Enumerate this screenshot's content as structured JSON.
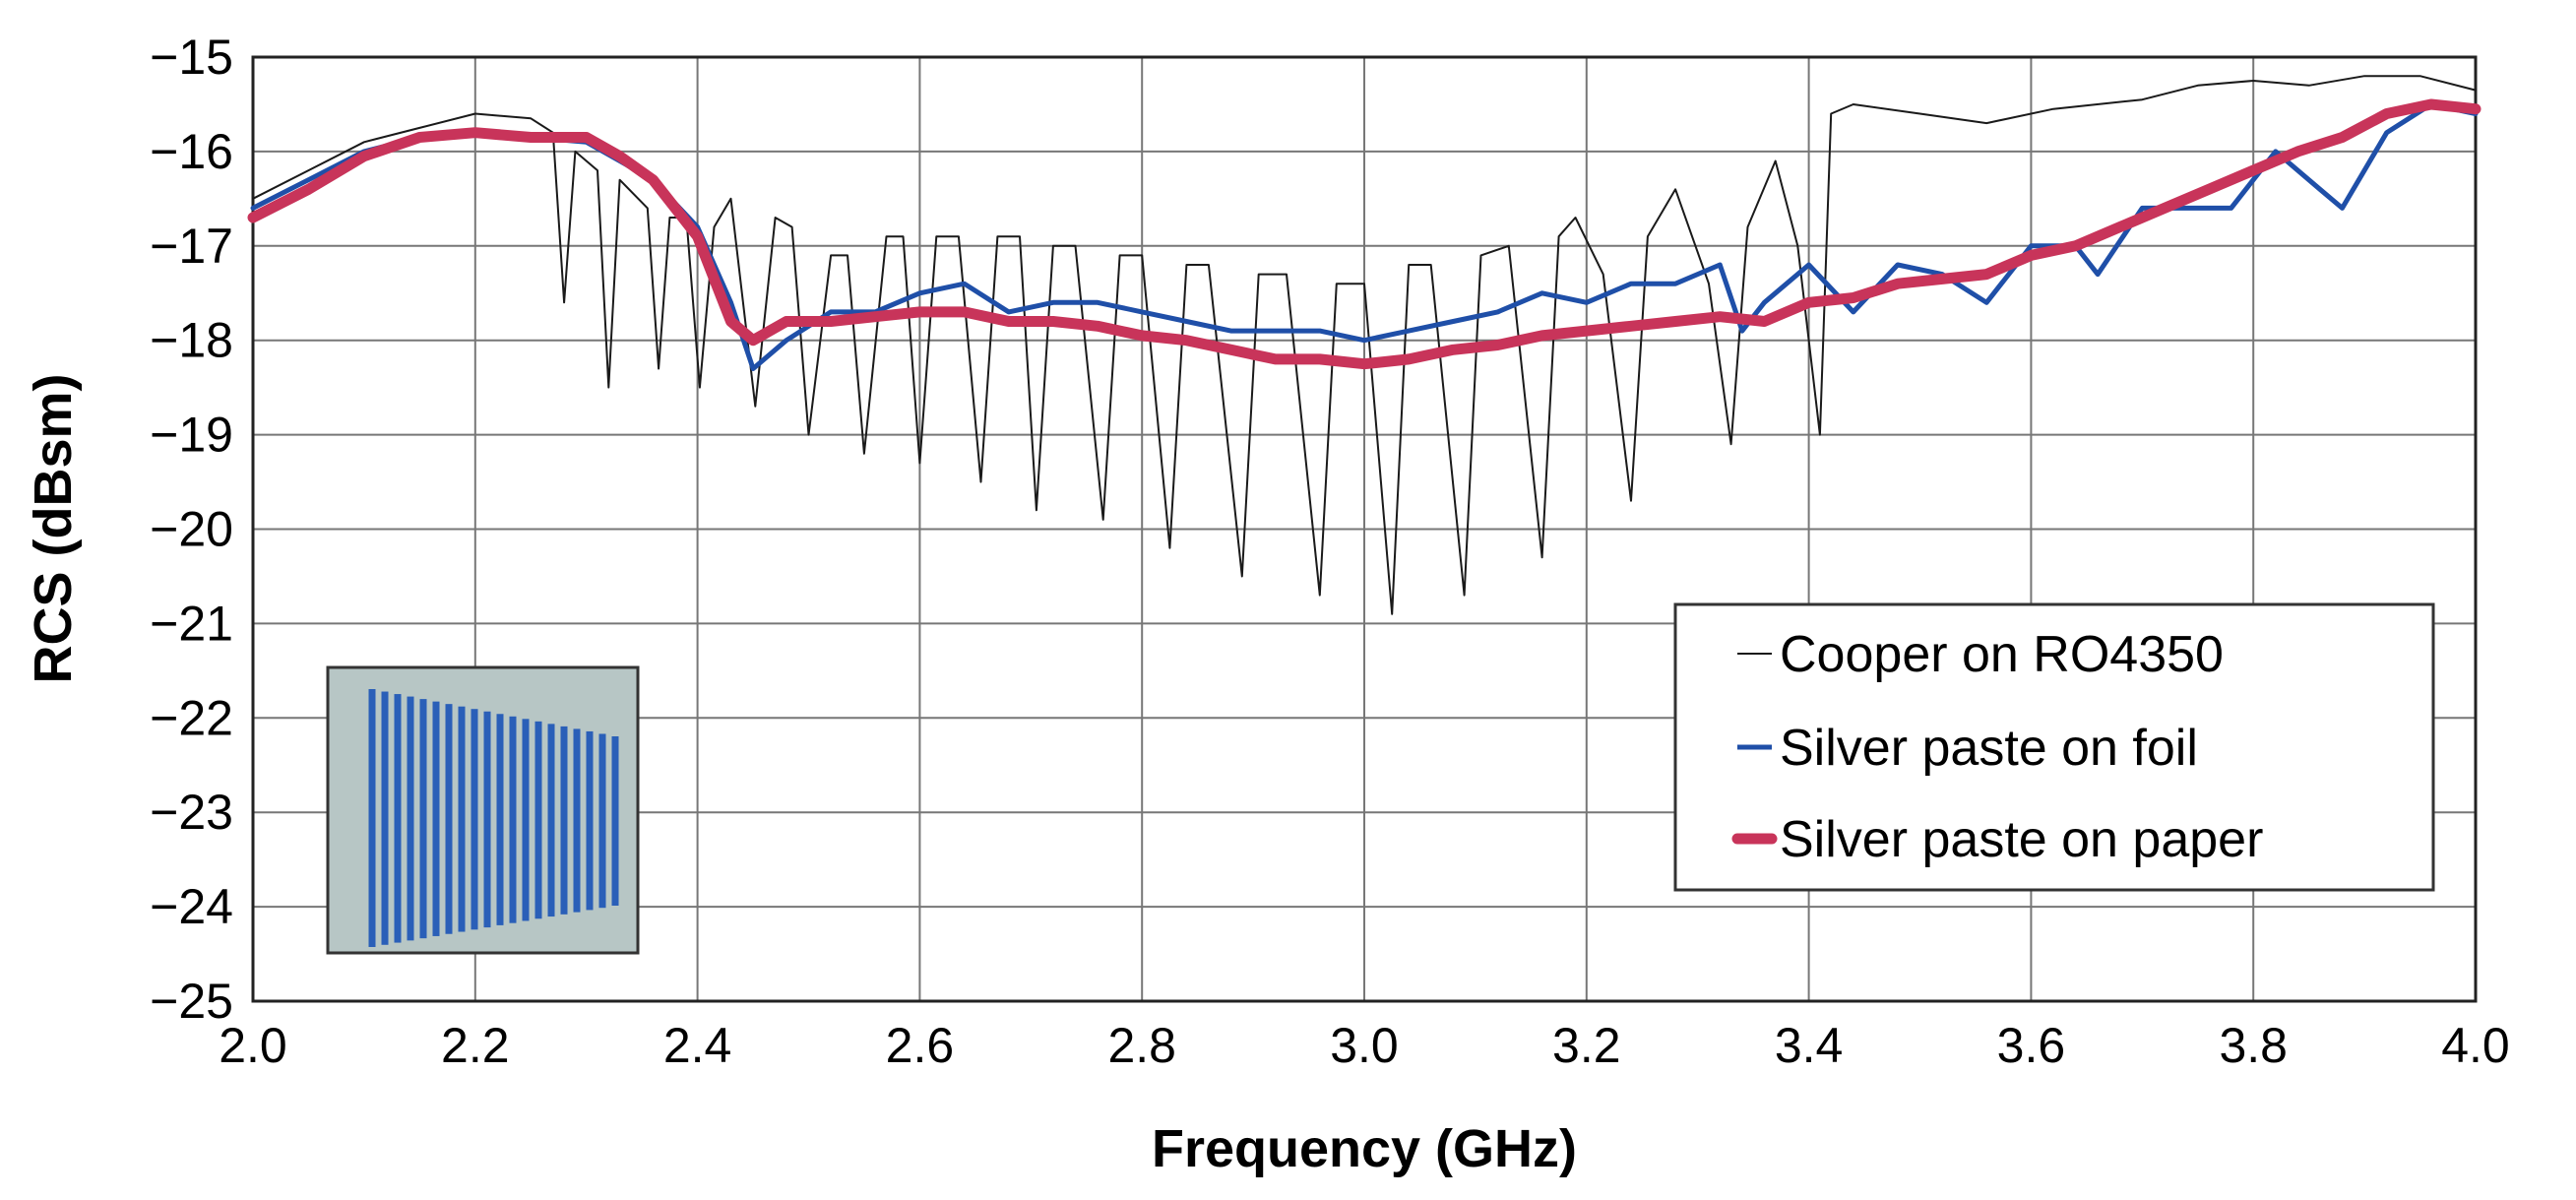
{
  "chart_data": {
    "type": "line",
    "title": "",
    "xlabel": "Frequency (GHz)",
    "ylabel": "RCS (dBsm)",
    "xlim": [
      2.0,
      4.0
    ],
    "ylim": [
      -25,
      -15
    ],
    "grid": true,
    "legend_position": "lower-right",
    "x_ticks": [
      {
        "value": 2.0,
        "label": "2.0"
      },
      {
        "value": 2.2,
        "label": "2.2"
      },
      {
        "value": 2.4,
        "label": "2.4"
      },
      {
        "value": 2.6,
        "label": "2.6"
      },
      {
        "value": 2.8,
        "label": "2.8"
      },
      {
        "value": 3.0,
        "label": "3.0"
      },
      {
        "value": 3.2,
        "label": "3.2"
      },
      {
        "value": 3.4,
        "label": "3.4"
      },
      {
        "value": 3.6,
        "label": "3.6"
      },
      {
        "value": 3.8,
        "label": "3.8"
      },
      {
        "value": 4.0,
        "label": "4.0"
      }
    ],
    "y_ticks": [
      {
        "value": -15,
        "label": "−15"
      },
      {
        "value": -16,
        "label": "−16"
      },
      {
        "value": -17,
        "label": "−17"
      },
      {
        "value": -18,
        "label": "−18"
      },
      {
        "value": -19,
        "label": "−19"
      },
      {
        "value": -20,
        "label": "−20"
      },
      {
        "value": -21,
        "label": "−21"
      },
      {
        "value": -22,
        "label": "−22"
      },
      {
        "value": -23,
        "label": "−23"
      },
      {
        "value": -24,
        "label": "−24"
      },
      {
        "value": -25,
        "label": "−25"
      }
    ],
    "series": [
      {
        "name": "Cooper on RO4350",
        "color": "#1a1a1a",
        "points": [
          [
            2.0,
            -16.5
          ],
          [
            2.05,
            -16.2
          ],
          [
            2.1,
            -15.9
          ],
          [
            2.15,
            -15.75
          ],
          [
            2.2,
            -15.6
          ],
          [
            2.25,
            -15.65
          ],
          [
            2.27,
            -15.8
          ],
          [
            2.28,
            -17.6
          ],
          [
            2.29,
            -16.0
          ],
          [
            2.31,
            -16.2
          ],
          [
            2.32,
            -18.5
          ],
          [
            2.33,
            -16.3
          ],
          [
            2.355,
            -16.6
          ],
          [
            2.365,
            -18.3
          ],
          [
            2.375,
            -16.7
          ],
          [
            2.39,
            -16.7
          ],
          [
            2.402,
            -18.5
          ],
          [
            2.415,
            -16.8
          ],
          [
            2.43,
            -16.5
          ],
          [
            2.452,
            -18.7
          ],
          [
            2.47,
            -16.7
          ],
          [
            2.485,
            -16.8
          ],
          [
            2.5,
            -19.0
          ],
          [
            2.52,
            -17.1
          ],
          [
            2.535,
            -17.1
          ],
          [
            2.55,
            -19.2
          ],
          [
            2.57,
            -16.9
          ],
          [
            2.585,
            -16.9
          ],
          [
            2.6,
            -19.3
          ],
          [
            2.615,
            -16.9
          ],
          [
            2.635,
            -16.9
          ],
          [
            2.655,
            -19.5
          ],
          [
            2.67,
            -16.9
          ],
          [
            2.69,
            -16.9
          ],
          [
            2.705,
            -19.8
          ],
          [
            2.72,
            -17.0
          ],
          [
            2.74,
            -17.0
          ],
          [
            2.765,
            -19.9
          ],
          [
            2.78,
            -17.1
          ],
          [
            2.8,
            -17.1
          ],
          [
            2.825,
            -20.2
          ],
          [
            2.84,
            -17.2
          ],
          [
            2.86,
            -17.2
          ],
          [
            2.89,
            -20.5
          ],
          [
            2.905,
            -17.3
          ],
          [
            2.93,
            -17.3
          ],
          [
            2.96,
            -20.7
          ],
          [
            2.975,
            -17.4
          ],
          [
            3.0,
            -17.4
          ],
          [
            3.025,
            -20.9
          ],
          [
            3.04,
            -17.2
          ],
          [
            3.06,
            -17.2
          ],
          [
            3.09,
            -20.7
          ],
          [
            3.105,
            -17.1
          ],
          [
            3.13,
            -17.0
          ],
          [
            3.16,
            -20.3
          ],
          [
            3.175,
            -16.9
          ],
          [
            3.19,
            -16.7
          ],
          [
            3.215,
            -17.3
          ],
          [
            3.24,
            -19.7
          ],
          [
            3.255,
            -16.9
          ],
          [
            3.28,
            -16.4
          ],
          [
            3.31,
            -17.4
          ],
          [
            3.33,
            -19.1
          ],
          [
            3.345,
            -16.8
          ],
          [
            3.37,
            -16.1
          ],
          [
            3.39,
            -17.0
          ],
          [
            3.41,
            -19.0
          ],
          [
            3.42,
            -15.6
          ],
          [
            3.44,
            -15.5
          ],
          [
            3.5,
            -15.6
          ],
          [
            3.56,
            -15.7
          ],
          [
            3.62,
            -15.55
          ],
          [
            3.7,
            -15.45
          ],
          [
            3.75,
            -15.3
          ],
          [
            3.8,
            -15.25
          ],
          [
            3.85,
            -15.3
          ],
          [
            3.9,
            -15.2
          ],
          [
            3.95,
            -15.2
          ],
          [
            4.0,
            -15.35
          ]
        ]
      },
      {
        "name": "Silver paste on foil",
        "color": "#1f4fa8",
        "points": [
          [
            2.0,
            -16.6
          ],
          [
            2.05,
            -16.3
          ],
          [
            2.1,
            -16.0
          ],
          [
            2.15,
            -15.85
          ],
          [
            2.2,
            -15.8
          ],
          [
            2.25,
            -15.85
          ],
          [
            2.3,
            -15.9
          ],
          [
            2.33,
            -16.1
          ],
          [
            2.36,
            -16.3
          ],
          [
            2.4,
            -16.8
          ],
          [
            2.43,
            -17.6
          ],
          [
            2.45,
            -18.3
          ],
          [
            2.48,
            -18.0
          ],
          [
            2.52,
            -17.7
          ],
          [
            2.56,
            -17.7
          ],
          [
            2.6,
            -17.5
          ],
          [
            2.64,
            -17.4
          ],
          [
            2.68,
            -17.7
          ],
          [
            2.72,
            -17.6
          ],
          [
            2.76,
            -17.6
          ],
          [
            2.8,
            -17.7
          ],
          [
            2.84,
            -17.8
          ],
          [
            2.88,
            -17.9
          ],
          [
            2.92,
            -17.9
          ],
          [
            2.96,
            -17.9
          ],
          [
            3.0,
            -18.0
          ],
          [
            3.04,
            -17.9
          ],
          [
            3.08,
            -17.8
          ],
          [
            3.12,
            -17.7
          ],
          [
            3.16,
            -17.5
          ],
          [
            3.2,
            -17.6
          ],
          [
            3.24,
            -17.4
          ],
          [
            3.28,
            -17.4
          ],
          [
            3.32,
            -17.2
          ],
          [
            3.34,
            -17.9
          ],
          [
            3.36,
            -17.6
          ],
          [
            3.4,
            -17.2
          ],
          [
            3.44,
            -17.7
          ],
          [
            3.48,
            -17.2
          ],
          [
            3.52,
            -17.3
          ],
          [
            3.56,
            -17.6
          ],
          [
            3.6,
            -17.0
          ],
          [
            3.64,
            -17.0
          ],
          [
            3.66,
            -17.3
          ],
          [
            3.7,
            -16.6
          ],
          [
            3.74,
            -16.6
          ],
          [
            3.78,
            -16.6
          ],
          [
            3.82,
            -16.0
          ],
          [
            3.86,
            -16.4
          ],
          [
            3.88,
            -16.6
          ],
          [
            3.92,
            -15.8
          ],
          [
            3.96,
            -15.5
          ],
          [
            4.0,
            -15.6
          ]
        ]
      },
      {
        "name": "Silver paste on paper",
        "color": "#c8345a",
        "points": [
          [
            2.0,
            -16.7
          ],
          [
            2.05,
            -16.4
          ],
          [
            2.1,
            -16.05
          ],
          [
            2.15,
            -15.85
          ],
          [
            2.2,
            -15.8
          ],
          [
            2.25,
            -15.85
          ],
          [
            2.3,
            -15.85
          ],
          [
            2.33,
            -16.05
          ],
          [
            2.36,
            -16.3
          ],
          [
            2.4,
            -16.9
          ],
          [
            2.43,
            -17.8
          ],
          [
            2.45,
            -18.0
          ],
          [
            2.48,
            -17.8
          ],
          [
            2.52,
            -17.8
          ],
          [
            2.56,
            -17.75
          ],
          [
            2.6,
            -17.7
          ],
          [
            2.64,
            -17.7
          ],
          [
            2.68,
            -17.8
          ],
          [
            2.72,
            -17.8
          ],
          [
            2.76,
            -17.85
          ],
          [
            2.8,
            -17.95
          ],
          [
            2.84,
            -18.0
          ],
          [
            2.88,
            -18.1
          ],
          [
            2.92,
            -18.2
          ],
          [
            2.96,
            -18.2
          ],
          [
            3.0,
            -18.25
          ],
          [
            3.04,
            -18.2
          ],
          [
            3.08,
            -18.1
          ],
          [
            3.12,
            -18.05
          ],
          [
            3.16,
            -17.95
          ],
          [
            3.2,
            -17.9
          ],
          [
            3.24,
            -17.85
          ],
          [
            3.28,
            -17.8
          ],
          [
            3.32,
            -17.75
          ],
          [
            3.36,
            -17.8
          ],
          [
            3.4,
            -17.6
          ],
          [
            3.44,
            -17.55
          ],
          [
            3.48,
            -17.4
          ],
          [
            3.52,
            -17.35
          ],
          [
            3.56,
            -17.3
          ],
          [
            3.6,
            -17.1
          ],
          [
            3.64,
            -17.0
          ],
          [
            3.68,
            -16.8
          ],
          [
            3.72,
            -16.6
          ],
          [
            3.76,
            -16.4
          ],
          [
            3.8,
            -16.2
          ],
          [
            3.84,
            -16.0
          ],
          [
            3.88,
            -15.85
          ],
          [
            3.92,
            -15.6
          ],
          [
            3.96,
            -15.5
          ],
          [
            4.0,
            -15.55
          ]
        ]
      }
    ]
  },
  "legend": {
    "items": [
      {
        "label": "Cooper on RO4350",
        "color": "#1a1a1a"
      },
      {
        "label": "Silver paste on foil",
        "color": "#1f4fa8"
      },
      {
        "label": "Silver paste on paper",
        "color": "#c8345a"
      }
    ]
  },
  "inset": {
    "background": "#b7c6c5",
    "bar_color": "#2a5fb8",
    "bar_count": 20
  }
}
